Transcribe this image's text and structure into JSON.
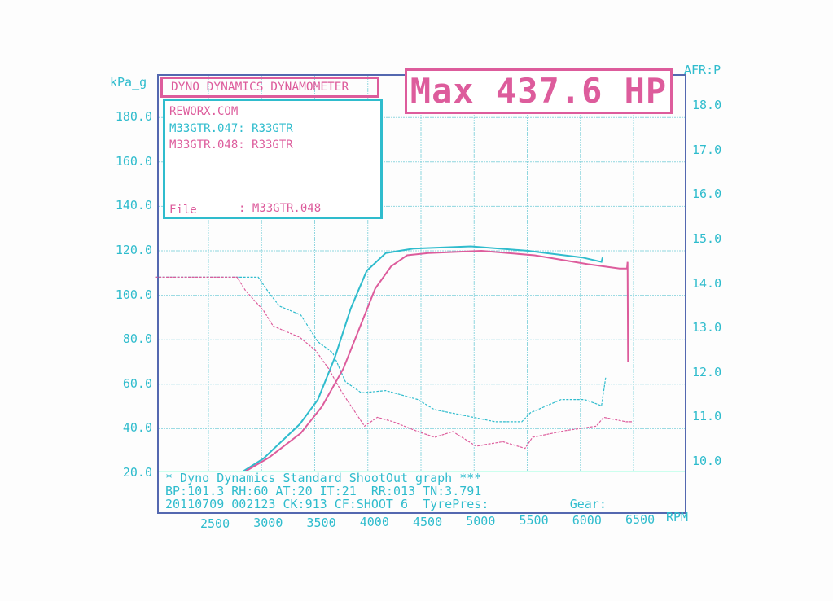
{
  "header": {
    "title": "DYNO DYNAMICS DYNAMOMETER",
    "max_label": "Max 437.6 HP",
    "site": "REWORX.COM",
    "runs": [
      {
        "label": "M33GTR.047: R33GTR",
        "color": "#2fbccd"
      },
      {
        "label": "M33GTR.048: R33GTR",
        "color": "#dd5c9c"
      }
    ],
    "file_label": "File",
    "file_value": ": M33GTR.048"
  },
  "footer": {
    "line1": "* Dyno Dynamics Standard ShootOut graph ***",
    "line2": "BP:101.3 RH:60 AT:20 IT:21  RR:013 TN:3.791",
    "line3": "20110709 002123 CK:913 CF:SHOOT_6  TyrePres: ________  Gear: _______"
  },
  "chart_data": {
    "type": "line",
    "title": "Max 437.6 HP",
    "xlabel": "RPM",
    "ylabel_left": "kPa_g",
    "ylabel_right": "AFR:P",
    "xlim": [
      1920,
      6900
    ],
    "ylim_left": [
      20,
      180
    ],
    "ylim_right": [
      10,
      18
    ],
    "x_ticks": [
      "2500",
      "3000",
      "3500",
      "4000",
      "4500",
      "5000",
      "5500",
      "6000",
      "6500"
    ],
    "y_left_ticks": [
      "20.0",
      "40.0",
      "60.0",
      "80.0",
      "100.0",
      "120.0",
      "140.0",
      "160.0",
      "180.0"
    ],
    "y_right_ticks": [
      "10.0",
      "11.0",
      "12.0",
      "13.0",
      "14.0",
      "15.0",
      "16.0",
      "17.0",
      "18.0"
    ],
    "grid": true,
    "series": [
      {
        "name": "M33GTR.047: R33GTR",
        "color": "#2fbccd",
        "kpa": {
          "rpm": [
            2730,
            2950,
            3290,
            3460,
            3620,
            3770,
            3920,
            4100,
            4360,
            4900,
            5440,
            5950,
            6130,
            6140
          ],
          "values": [
            20,
            26.6,
            42,
            53,
            72,
            94,
            111,
            119,
            121,
            122,
            120,
            117,
            115,
            117
          ]
        },
        "afr": {
          "rpm": [
            1930,
            2900,
            3000,
            3100,
            3300,
            3460,
            3600,
            3720,
            3870,
            4100,
            4400,
            4560,
            4820,
            5130,
            5380,
            5460,
            5750,
            5970,
            6130,
            6170
          ],
          "values": [
            14.15,
            14.15,
            13.8,
            13.5,
            13.3,
            12.7,
            12.45,
            11.8,
            11.55,
            11.6,
            11.4,
            11.17,
            11.05,
            10.9,
            10.9,
            11.1,
            11.4,
            11.4,
            11.26,
            11.9
          ]
        }
      },
      {
        "name": "M33GTR.048: R33GTR",
        "color": "#dd5c9c",
        "kpa": {
          "rpm": [
            2750,
            3000,
            3300,
            3500,
            3700,
            3850,
            4000,
            4150,
            4300,
            4500,
            5000,
            5500,
            6000,
            6300,
            6370,
            6375,
            6380
          ],
          "values": [
            20,
            27,
            38,
            50,
            67,
            85,
            103,
            113,
            118,
            119,
            120,
            118,
            114,
            112,
            112,
            115,
            70
          ]
        },
        "afr": {
          "rpm": [
            1930,
            2700,
            2780,
            2950,
            3040,
            3290,
            3440,
            3560,
            3690,
            3900,
            4020,
            4170,
            4380,
            4560,
            4730,
            4950,
            5200,
            5410,
            5480,
            5790,
            6080,
            6150,
            6360,
            6420
          ],
          "values": [
            14.15,
            14.15,
            13.85,
            13.4,
            13.05,
            12.8,
            12.5,
            12.1,
            11.55,
            10.8,
            11.0,
            10.9,
            10.7,
            10.55,
            10.68,
            10.35,
            10.45,
            10.3,
            10.55,
            10.7,
            10.8,
            11.0,
            10.9,
            10.9
          ]
        }
      }
    ]
  }
}
